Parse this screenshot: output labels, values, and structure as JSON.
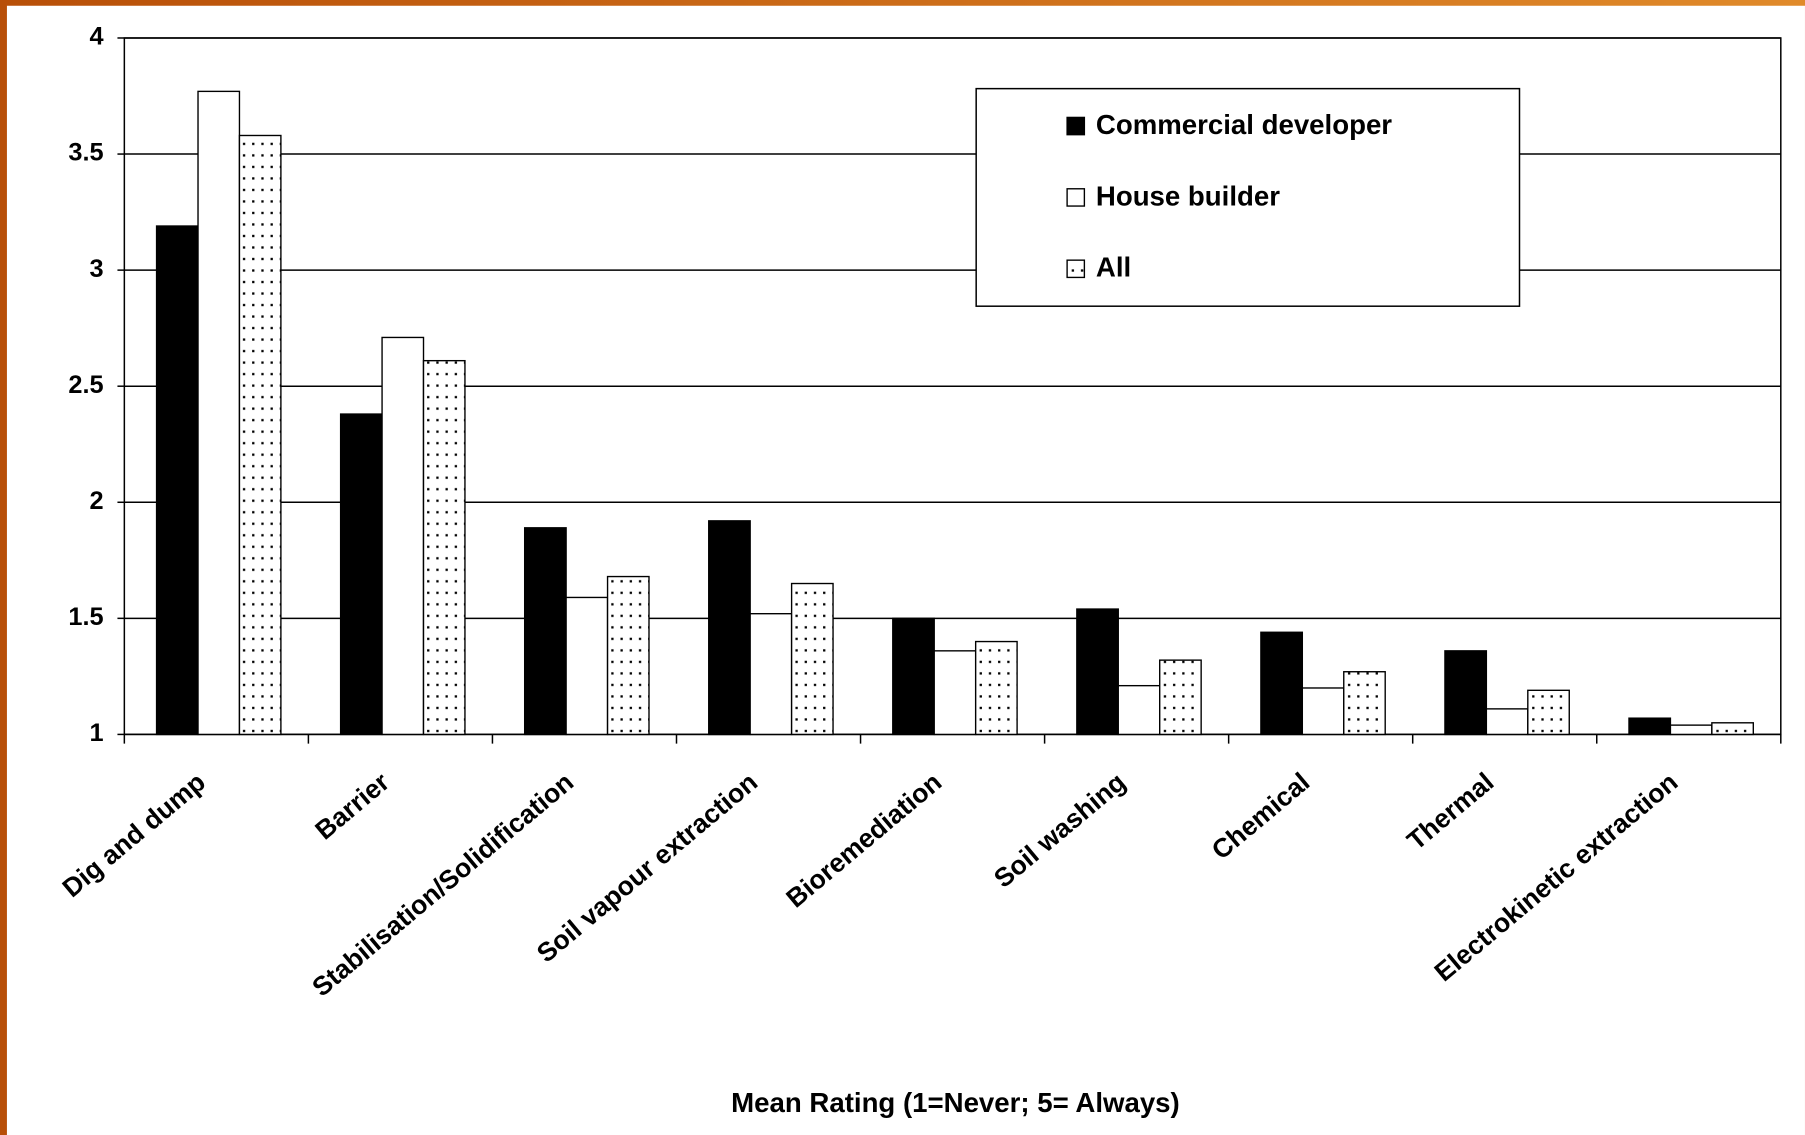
{
  "chart_data": {
    "type": "bar",
    "x_label": "Mean Rating (1=Never; 5= Always)",
    "categories": [
      "Dig and dump",
      "Barrier",
      "Stabilisation/Solidification",
      "Soil vapour extraction",
      "Bioremediation",
      "Soil washing",
      "Chemical",
      "Thermal",
      "Electrokinetic extraction"
    ],
    "series": [
      {
        "name": "Commercial developer",
        "color": "#000000",
        "values": [
          3.19,
          2.38,
          1.89,
          1.92,
          1.5,
          1.54,
          1.44,
          1.36,
          1.07
        ]
      },
      {
        "name": "House builder",
        "color": "#ffffff",
        "values": [
          3.77,
          2.71,
          1.59,
          1.52,
          1.36,
          1.21,
          1.2,
          1.11,
          1.04
        ]
      },
      {
        "name": "All",
        "color": "#ffffff",
        "pattern": "dots",
        "values": [
          3.58,
          2.61,
          1.68,
          1.65,
          1.4,
          1.32,
          1.27,
          1.19,
          1.05
        ]
      }
    ],
    "ylim": [
      1,
      4
    ],
    "yticks": [
      1,
      1.5,
      2,
      2.5,
      3,
      3.5,
      4
    ],
    "grid": true
  }
}
